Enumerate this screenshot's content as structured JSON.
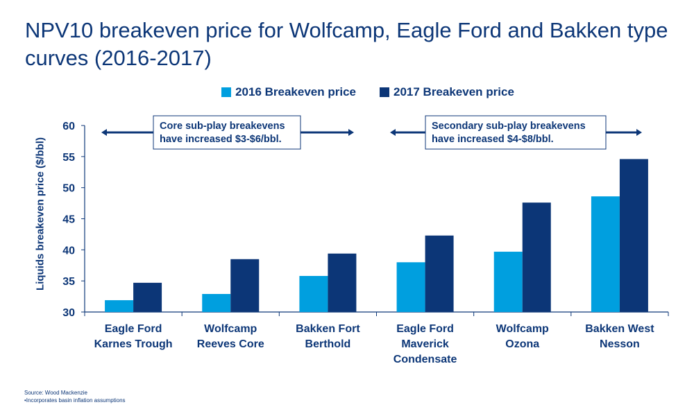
{
  "title": "NPV10 breakeven price for Wolfcamp, Eagle Ford and Bakken type curves (2016-2017)",
  "chart_data": {
    "type": "bar",
    "title": "NPV10 breakeven price for Wolfcamp, Eagle Ford and Bakken type curves (2016-2017)",
    "xlabel": "",
    "ylabel": "Liquids breakeven price ($/bbl)",
    "ylim": [
      30,
      60
    ],
    "yticks": [
      30,
      35,
      40,
      45,
      50,
      55,
      60
    ],
    "grid": false,
    "legend_position": "top-center",
    "categories": [
      [
        "Eagle Ford",
        "Karnes Trough"
      ],
      [
        "Wolfcamp",
        "Reeves Core"
      ],
      [
        "Bakken Fort",
        "Berthold"
      ],
      [
        "Eagle Ford",
        "Maverick",
        "Condensate"
      ],
      [
        "Wolfcamp",
        "Ozona"
      ],
      [
        "Bakken West",
        "Nesson"
      ]
    ],
    "series": [
      {
        "name": "2016 Breakeven price",
        "color": "#009fdf",
        "values": [
          31.9,
          32.9,
          35.8,
          38.0,
          39.7,
          48.6
        ]
      },
      {
        "name": "2017 Breakeven price",
        "color": "#0c3677",
        "values": [
          34.7,
          38.5,
          39.4,
          42.3,
          47.6,
          54.6
        ]
      }
    ],
    "annotations": [
      {
        "lines": [
          "Core sub-play breakevens",
          "have increased $3-$6/bbl."
        ],
        "span_categories": [
          0,
          2
        ]
      },
      {
        "lines": [
          "Secondary sub-play breakevens",
          "have increased $4-$8/bbl."
        ],
        "span_categories": [
          3,
          5
        ]
      }
    ]
  },
  "footer": {
    "source": "Source: Wood Mackenzie",
    "note": "•Incorporates basin inflation assumptions"
  }
}
